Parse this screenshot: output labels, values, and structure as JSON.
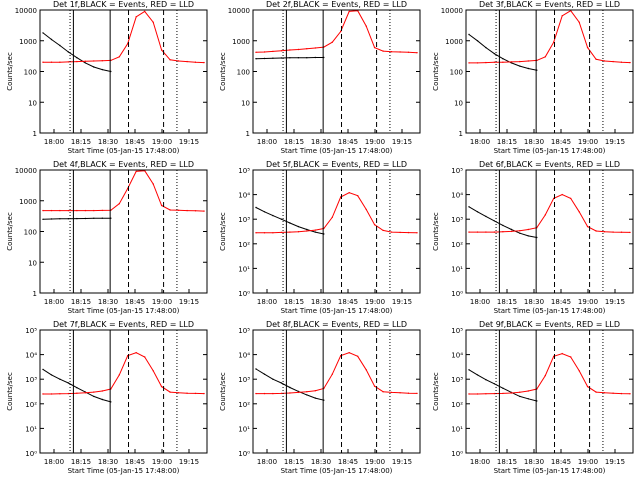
{
  "chart_data": [
    {
      "type": "line",
      "title": "Det 1f,BLACK = Events, RED = LLD",
      "ylabel": "Counts/sec",
      "xlabel": "Start Time (05-Jan-15 17:48:00)",
      "x_ticks": [
        "18:00",
        "18:15",
        "18:30",
        "18:45",
        "19:00",
        "19:15"
      ],
      "y_ticks": [
        "1",
        "10",
        "100",
        "1000",
        "10000"
      ],
      "ylim": [
        1,
        10000
      ],
      "yscale": "log",
      "series": [
        {
          "name": "BLACK",
          "color": "#000000",
          "values": [
            1800,
            1100,
            700,
            430,
            280,
            190,
            140,
            115,
            100,
            0,
            0,
            0,
            0,
            0,
            0,
            0,
            0,
            0,
            0,
            0
          ]
        },
        {
          "name": "RED",
          "color": "#ff0000",
          "values": [
            200,
            200,
            200,
            205,
            210,
            215,
            220,
            225,
            230,
            300,
            800,
            6000,
            9000,
            4000,
            500,
            240,
            220,
            210,
            200,
            195
          ]
        }
      ]
    },
    {
      "type": "line",
      "title": "Det 2f,BLACK = Events, RED = LLD",
      "ylabel": "Counts/sec",
      "xlabel": "Start Time (05-Jan-15 17:48:00)",
      "x_ticks": [
        "18:00",
        "18:15",
        "18:30",
        "18:45",
        "19:00",
        "19:15"
      ],
      "y_ticks": [
        "1",
        "10",
        "100",
        "1000",
        "10000"
      ],
      "ylim": [
        1,
        10000
      ],
      "yscale": "log",
      "series": [
        {
          "name": "BLACK",
          "color": "#000000",
          "values": [
            260,
            265,
            270,
            275,
            278,
            280,
            282,
            285,
            285,
            0,
            0,
            0,
            0,
            0,
            0,
            0,
            0,
            0,
            0,
            0
          ]
        },
        {
          "name": "RED",
          "color": "#ff0000",
          "values": [
            420,
            430,
            450,
            470,
            500,
            520,
            550,
            580,
            620,
            900,
            2000,
            9000,
            9500,
            3000,
            600,
            460,
            440,
            430,
            420,
            410
          ]
        }
      ]
    },
    {
      "type": "line",
      "title": "Det 3f,BLACK = Events, RED = LLD",
      "ylabel": "Counts/sec",
      "xlabel": "Start Time (05-Jan-15 17:48:00)",
      "x_ticks": [
        "18:00",
        "18:15",
        "18:30",
        "18:45",
        "19:00",
        "19:15"
      ],
      "y_ticks": [
        "1",
        "10",
        "100",
        "1000",
        "10000"
      ],
      "ylim": [
        1,
        10000
      ],
      "yscale": "log",
      "series": [
        {
          "name": "BLACK",
          "color": "#000000",
          "values": [
            1600,
            1000,
            600,
            380,
            260,
            190,
            150,
            125,
            110,
            0,
            0,
            0,
            0,
            0,
            0,
            0,
            0,
            0,
            0,
            0
          ]
        },
        {
          "name": "RED",
          "color": "#ff0000",
          "values": [
            190,
            190,
            195,
            200,
            200,
            205,
            210,
            220,
            230,
            300,
            900,
            6500,
            9500,
            4000,
            600,
            250,
            220,
            210,
            200,
            195
          ]
        }
      ]
    },
    {
      "type": "line",
      "title": "Det 4f,BLACK = Events, RED = LLD",
      "ylabel": "Counts/sec",
      "xlabel": "Start Time (05-Jan-15 17:48:00)",
      "x_ticks": [
        "18:00",
        "18:15",
        "18:30",
        "18:45",
        "19:00",
        "19:15"
      ],
      "y_ticks": [
        "1",
        "10",
        "100",
        "1000",
        "10000"
      ],
      "ylim": [
        1,
        10000
      ],
      "yscale": "log",
      "series": [
        {
          "name": "BLACK",
          "color": "#000000",
          "values": [
            250,
            255,
            258,
            260,
            262,
            265,
            268,
            270,
            270,
            0,
            0,
            0,
            0,
            0,
            0,
            0,
            0,
            0,
            0,
            0
          ]
        },
        {
          "name": "RED",
          "color": "#ff0000",
          "values": [
            480,
            480,
            480,
            480,
            480,
            480,
            480,
            485,
            490,
            800,
            2500,
            9000,
            9500,
            3500,
            700,
            500,
            490,
            480,
            470,
            460
          ]
        }
      ]
    },
    {
      "type": "line",
      "title": "Det 5f,BLACK = Events, RED = LLD",
      "ylabel": "Counts/sec",
      "xlabel": "Start Time (05-Jan-15 17:48:00)",
      "x_ticks": [
        "18:00",
        "18:15",
        "18:30",
        "18:45",
        "19:00",
        "19:15"
      ],
      "y_ticks": [
        "10⁰",
        "10¹",
        "10²",
        "10³",
        "10⁴",
        "10⁵"
      ],
      "ylim": [
        1,
        100000
      ],
      "yscale": "log",
      "series": [
        {
          "name": "BLACK",
          "color": "#000000",
          "values": [
            3000,
            2000,
            1400,
            1000,
            700,
            500,
            380,
            300,
            250,
            0,
            0,
            0,
            0,
            0,
            0,
            0,
            0,
            0,
            0,
            0
          ]
        },
        {
          "name": "RED",
          "color": "#ff0000",
          "values": [
            280,
            280,
            280,
            290,
            300,
            310,
            330,
            360,
            420,
            1200,
            8000,
            12000,
            9000,
            2500,
            600,
            350,
            300,
            290,
            285,
            280
          ]
        }
      ]
    },
    {
      "type": "line",
      "title": "Det 6f,BLACK = Events, RED = LLD",
      "ylabel": "Counts/sec",
      "xlabel": "Start Time (05-Jan-15 17:48:00)",
      "x_ticks": [
        "18:00",
        "18:15",
        "18:30",
        "18:45",
        "19:00",
        "19:15"
      ],
      "y_ticks": [
        "10⁰",
        "10¹",
        "10²",
        "10³",
        "10⁴",
        "10⁵"
      ],
      "ylim": [
        1,
        100000
      ],
      "yscale": "log",
      "series": [
        {
          "name": "BLACK",
          "color": "#000000",
          "values": [
            3200,
            2000,
            1300,
            850,
            560,
            380,
            270,
            210,
            180,
            0,
            0,
            0,
            0,
            0,
            0,
            0,
            0,
            0,
            0,
            0
          ]
        },
        {
          "name": "RED",
          "color": "#ff0000",
          "values": [
            300,
            300,
            300,
            300,
            310,
            320,
            340,
            380,
            450,
            1500,
            7000,
            10000,
            7000,
            2000,
            500,
            330,
            310,
            300,
            295,
            290
          ]
        }
      ]
    },
    {
      "type": "line",
      "title": "Det 7f,BLACK = Events, RED = LLD",
      "ylabel": "Counts/sec",
      "xlabel": "Start Time (05-Jan-15 17:48:00)",
      "x_ticks": [
        "18:00",
        "18:15",
        "18:30",
        "18:45",
        "19:00",
        "19:15"
      ],
      "y_ticks": [
        "10⁰",
        "10¹",
        "10²",
        "10³",
        "10⁴",
        "10⁵"
      ],
      "ylim": [
        1,
        100000
      ],
      "yscale": "log",
      "series": [
        {
          "name": "BLACK",
          "color": "#000000",
          "values": [
            2500,
            1500,
            1000,
            700,
            450,
            300,
            200,
            150,
            120,
            0,
            0,
            0,
            0,
            0,
            0,
            0,
            0,
            0,
            0,
            0
          ]
        },
        {
          "name": "RED",
          "color": "#ff0000",
          "values": [
            250,
            250,
            255,
            260,
            270,
            280,
            300,
            330,
            400,
            1500,
            9000,
            12000,
            8000,
            2200,
            500,
            300,
            280,
            270,
            265,
            260
          ]
        }
      ]
    },
    {
      "type": "line",
      "title": "Det 8f,BLACK = Events, RED = LLD",
      "ylabel": "Counts/sec",
      "xlabel": "Start Time (05-Jan-15 17:48:00)",
      "x_ticks": [
        "18:00",
        "18:15",
        "18:30",
        "18:45",
        "19:00",
        "19:15"
      ],
      "y_ticks": [
        "10⁰",
        "10¹",
        "10²",
        "10³",
        "10⁴",
        "10⁵"
      ],
      "ylim": [
        1,
        100000
      ],
      "yscale": "log",
      "series": [
        {
          "name": "BLACK",
          "color": "#000000",
          "values": [
            2600,
            1600,
            1000,
            700,
            460,
            320,
            230,
            170,
            140,
            0,
            0,
            0,
            0,
            0,
            0,
            0,
            0,
            0,
            0,
            0
          ]
        },
        {
          "name": "RED",
          "color": "#ff0000",
          "values": [
            260,
            260,
            260,
            265,
            275,
            290,
            310,
            340,
            420,
            1600,
            9000,
            12000,
            8500,
            2400,
            520,
            310,
            290,
            280,
            270,
            265
          ]
        }
      ]
    },
    {
      "type": "line",
      "title": "Det 9f,BLACK = Events, RED = LLD",
      "ylabel": "Counts/sec",
      "xlabel": "Start Time (05-Jan-15 17:48:00)",
      "x_ticks": [
        "18:00",
        "18:15",
        "18:30",
        "18:45",
        "19:00",
        "19:15"
      ],
      "y_ticks": [
        "10⁰",
        "10¹",
        "10²",
        "10³",
        "10⁴",
        "10⁵"
      ],
      "ylim": [
        1,
        100000
      ],
      "yscale": "log",
      "series": [
        {
          "name": "BLACK",
          "color": "#000000",
          "values": [
            2400,
            1500,
            950,
            650,
            430,
            290,
            200,
            160,
            130,
            0,
            0,
            0,
            0,
            0,
            0,
            0,
            0,
            0,
            0,
            0
          ]
        },
        {
          "name": "RED",
          "color": "#ff0000",
          "values": [
            250,
            250,
            255,
            260,
            265,
            275,
            295,
            330,
            400,
            1400,
            8500,
            11000,
            8000,
            2200,
            500,
            300,
            280,
            270,
            260,
            255
          ]
        }
      ]
    }
  ]
}
